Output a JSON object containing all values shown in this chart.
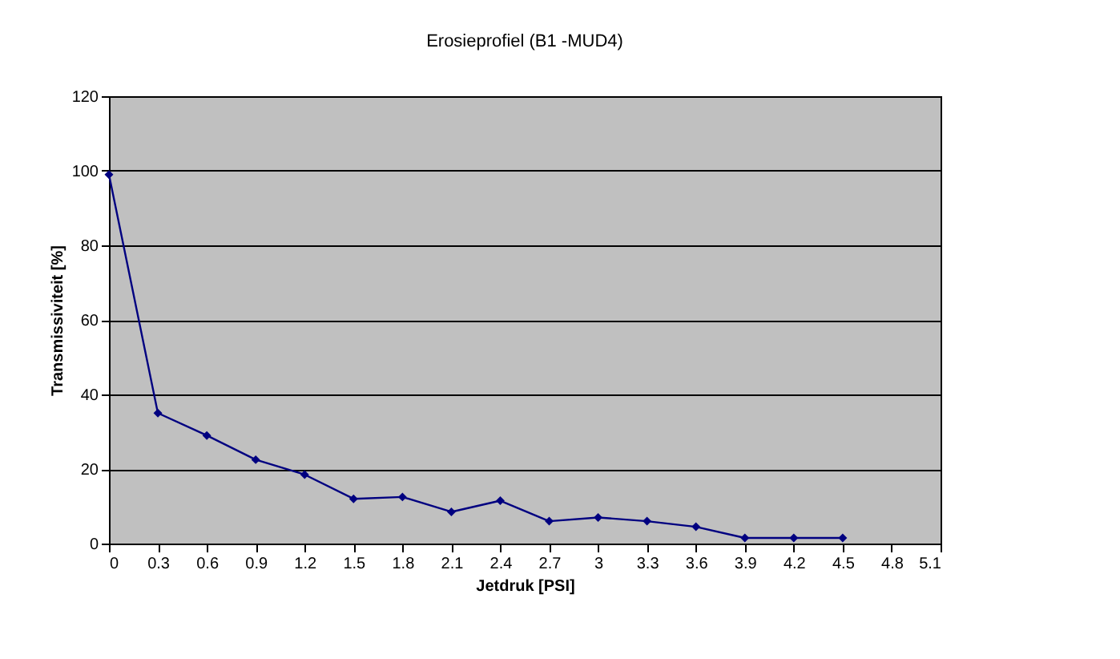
{
  "chart_data": {
    "type": "line",
    "title": "Erosieprofiel (B1 -MUD4)",
    "xlabel": "Jetdruk [PSI]",
    "ylabel": "Transmissiviteit [%]",
    "x": [
      0,
      0.3,
      0.6,
      0.9,
      1.2,
      1.5,
      1.8,
      2.1,
      2.4,
      2.7,
      3,
      3.3,
      3.6,
      3.9,
      4.2,
      4.5
    ],
    "series": [
      {
        "color": "#000080",
        "values": [
          99,
          35,
          29,
          22.5,
          18.5,
          12,
          12.5,
          8.5,
          11.5,
          6,
          7,
          6,
          4.5,
          1.5,
          1.5,
          1.5
        ]
      }
    ],
    "xlim": [
      0,
      5.1
    ],
    "xticks": [
      0,
      0.3,
      0.6,
      0.9,
      1.2,
      1.5,
      1.8,
      2.1,
      2.4,
      2.7,
      3,
      3.3,
      3.6,
      3.9,
      4.2,
      4.5,
      4.8,
      5.1
    ],
    "ylim": [
      0,
      120
    ],
    "yticks": [
      0,
      20,
      40,
      60,
      80,
      100,
      120
    ],
    "grid": "y",
    "marker": "diamond",
    "line_style": "solid"
  }
}
